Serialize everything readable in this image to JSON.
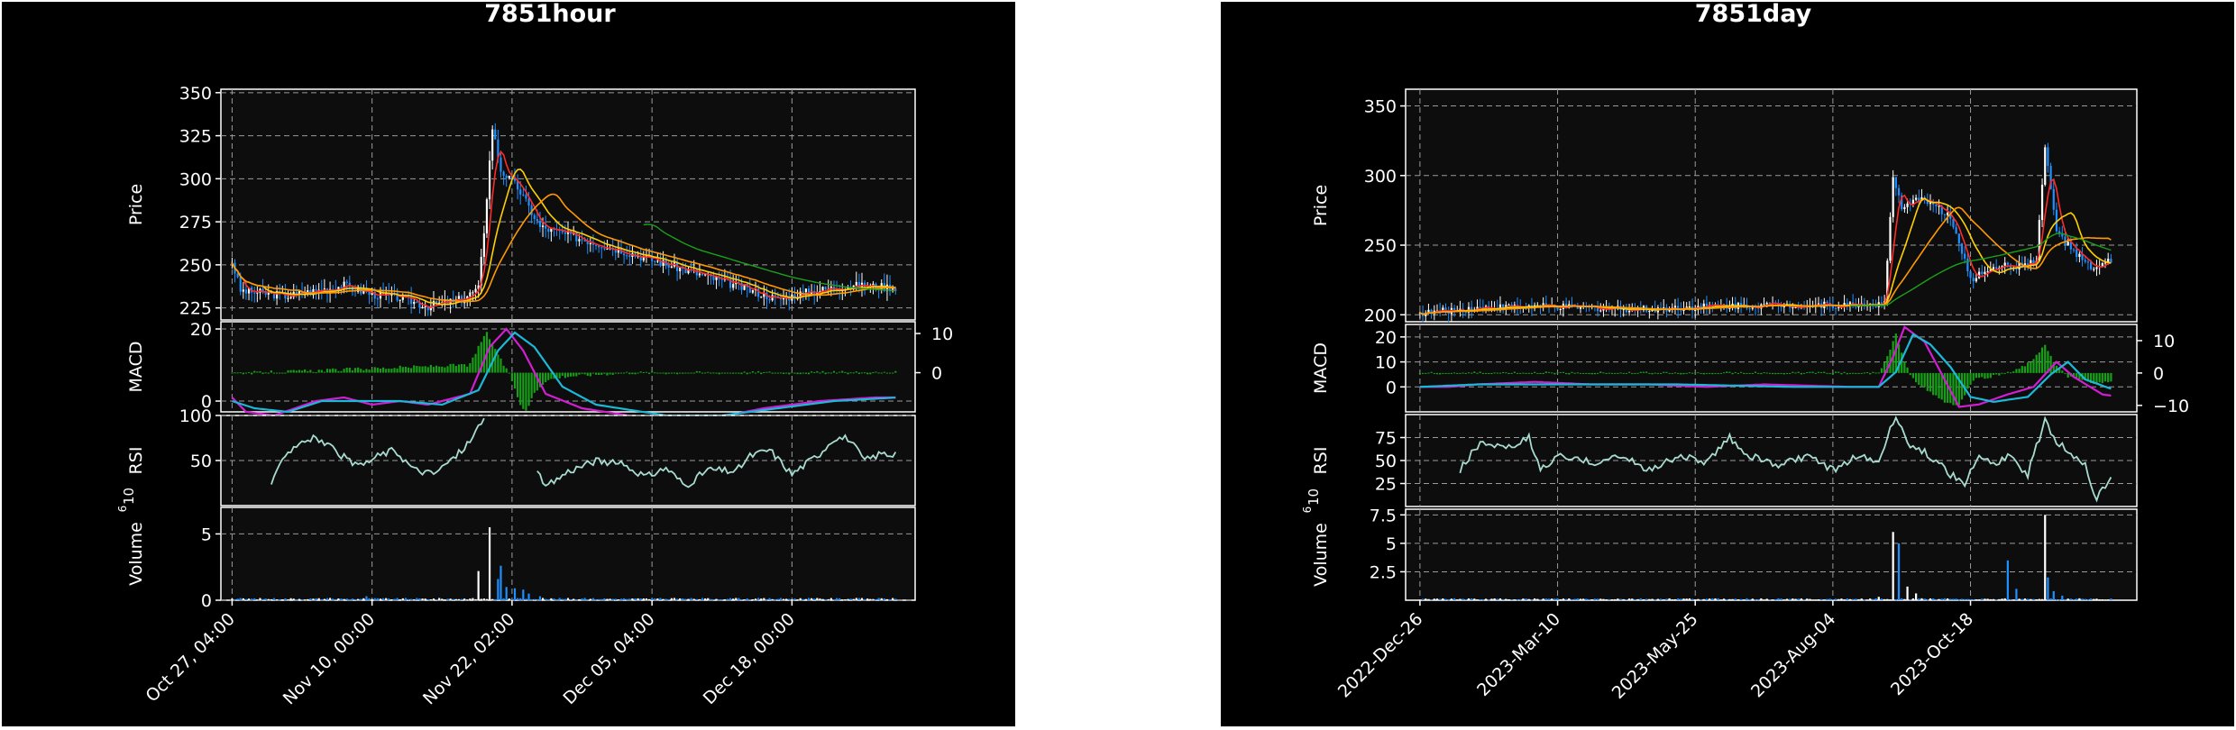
{
  "chart_data": [
    {
      "type": "candlestick",
      "title": "7851hour",
      "panels": [
        {
          "name": "price",
          "ylabel": "Price",
          "ylim": [
            218,
            352
          ],
          "yticks": [
            225,
            250,
            275,
            300,
            325,
            350
          ]
        },
        {
          "name": "macd",
          "ylabel": "MACD",
          "ylim": [
            -3,
            22
          ],
          "yticks": [
            0,
            20
          ],
          "ylim_right": [
            -10,
            13
          ],
          "yticks_right": [
            0,
            10
          ]
        },
        {
          "name": "rsi",
          "ylabel": "RSI",
          "ylim": [
            0,
            100
          ],
          "yticks": [
            50,
            100
          ]
        },
        {
          "name": "volume",
          "ylabel": "Volume",
          "ylabel_exp": "6",
          "ylim": [
            0,
            7
          ],
          "yticks": [
            0,
            5
          ]
        }
      ],
      "xlim": [
        -4,
        244
      ],
      "xticks": [
        {
          "i": 0,
          "label": "Oct 27, 04:00"
        },
        {
          "i": 50,
          "label": "Nov 10, 00:00"
        },
        {
          "i": 100,
          "label": "Nov 22, 02:00"
        },
        {
          "i": 150,
          "label": "Dec 05, 04:00"
        },
        {
          "i": 200,
          "label": "Dec 18, 00:00"
        }
      ],
      "price_anchors": [
        [
          0,
          252
        ],
        [
          3,
          235
        ],
        [
          20,
          232
        ],
        [
          40,
          238
        ],
        [
          50,
          233
        ],
        [
          60,
          231
        ],
        [
          70,
          226
        ],
        [
          82,
          230
        ],
        [
          88,
          236
        ],
        [
          90,
          270
        ],
        [
          93,
          330
        ],
        [
          96,
          305
        ],
        [
          102,
          295
        ],
        [
          110,
          272
        ],
        [
          125,
          265
        ],
        [
          140,
          258
        ],
        [
          160,
          248
        ],
        [
          180,
          238
        ],
        [
          195,
          230
        ],
        [
          205,
          234
        ],
        [
          220,
          238
        ],
        [
          238,
          237
        ]
      ],
      "volume_spikes": [
        [
          88,
          2.2
        ],
        [
          92,
          5.5
        ],
        [
          95,
          1.6
        ],
        [
          96,
          2.6
        ],
        [
          98,
          1.0
        ],
        [
          101,
          0.9
        ],
        [
          104,
          0.8
        ],
        [
          106,
          0.5
        ],
        [
          110,
          0.3
        ],
        [
          48,
          0.3
        ]
      ],
      "rsi_anchors": [
        [
          14,
          20
        ],
        [
          18,
          55
        ],
        [
          25,
          72
        ],
        [
          30,
          75
        ],
        [
          38,
          58
        ],
        [
          45,
          42
        ],
        [
          52,
          55
        ],
        [
          58,
          62
        ],
        [
          65,
          40
        ],
        [
          72,
          35
        ],
        [
          80,
          55
        ],
        [
          86,
          75
        ],
        [
          90,
          100
        ],
        [
          103,
          null
        ],
        [
          108,
          42
        ],
        [
          112,
          20
        ],
        [
          120,
          38
        ],
        [
          130,
          50
        ],
        [
          140,
          45
        ],
        [
          148,
          32
        ],
        [
          155,
          42
        ],
        [
          162,
          22
        ],
        [
          170,
          40
        ],
        [
          180,
          38
        ],
        [
          185,
          55
        ],
        [
          192,
          62
        ],
        [
          200,
          35
        ],
        [
          210,
          58
        ],
        [
          215,
          75
        ],
        [
          220,
          75
        ],
        [
          226,
          50
        ],
        [
          232,
          58
        ],
        [
          238,
          55
        ]
      ],
      "macd_anchors": [
        [
          0,
          1
        ],
        [
          5,
          -3
        ],
        [
          15,
          -4
        ],
        [
          30,
          0
        ],
        [
          40,
          1
        ],
        [
          50,
          -1
        ],
        [
          60,
          0
        ],
        [
          70,
          -1
        ],
        [
          85,
          2
        ],
        [
          92,
          15
        ],
        [
          98,
          20
        ],
        [
          104,
          14
        ],
        [
          112,
          2
        ],
        [
          125,
          -2
        ],
        [
          150,
          -5
        ],
        [
          170,
          -5
        ],
        [
          190,
          -2
        ],
        [
          210,
          0
        ],
        [
          230,
          1
        ],
        [
          238,
          1
        ]
      ],
      "signal_anchors": [
        [
          0,
          0
        ],
        [
          8,
          -2
        ],
        [
          20,
          -3
        ],
        [
          32,
          0
        ],
        [
          45,
          0
        ],
        [
          60,
          0
        ],
        [
          75,
          -1
        ],
        [
          88,
          3
        ],
        [
          95,
          14
        ],
        [
          101,
          19
        ],
        [
          108,
          15
        ],
        [
          118,
          4
        ],
        [
          130,
          -1
        ],
        [
          155,
          -4
        ],
        [
          175,
          -4
        ],
        [
          195,
          -2
        ],
        [
          215,
          0
        ],
        [
          238,
          1
        ]
      ],
      "hist_anchors": [
        [
          0,
          0
        ],
        [
          10,
          0
        ],
        [
          85,
          2
        ],
        [
          89,
          8
        ],
        [
          91,
          10
        ],
        [
          94,
          6
        ],
        [
          97,
          2
        ],
        [
          100,
          -2
        ],
        [
          103,
          -8
        ],
        [
          105,
          -10
        ],
        [
          108,
          -5
        ],
        [
          112,
          -2
        ],
        [
          118,
          -1
        ],
        [
          140,
          0
        ],
        [
          238,
          0
        ]
      ]
    },
    {
      "type": "candlestick",
      "title": "7851day",
      "panels": [
        {
          "name": "price",
          "ylabel": "Price",
          "ylim": [
            195,
            362
          ],
          "yticks": [
            200,
            250,
            300,
            350
          ]
        },
        {
          "name": "macd",
          "ylabel": "MACD",
          "ylim": [
            -10,
            25
          ],
          "yticks": [
            0,
            10,
            20
          ],
          "ylim_right": [
            -12,
            15
          ],
          "yticks_right": [
            -10,
            0,
            10
          ]
        },
        {
          "name": "rsi",
          "ylabel": "RSI",
          "ylim": [
            0,
            100
          ],
          "yticks": [
            25,
            50,
            75
          ]
        },
        {
          "name": "volume",
          "ylabel": "Volume",
          "ylabel_exp": "6",
          "ylim": [
            0,
            8
          ],
          "yticks": [
            2.5,
            5.0,
            7.5
          ]
        }
      ],
      "xlim": [
        -5,
        250
      ],
      "xticks": [
        {
          "i": 0,
          "label": "2022-Dec-26"
        },
        {
          "i": 48,
          "label": "2023-Mar-10"
        },
        {
          "i": 96,
          "label": "2023-May-25"
        },
        {
          "i": 144,
          "label": "2023-Aug-04"
        },
        {
          "i": 192,
          "label": "2023-Oct-18"
        }
      ],
      "price_anchors": [
        [
          0,
          201
        ],
        [
          20,
          205
        ],
        [
          40,
          206
        ],
        [
          60,
          205
        ],
        [
          80,
          204
        ],
        [
          100,
          206
        ],
        [
          120,
          207
        ],
        [
          150,
          207
        ],
        [
          162,
          208
        ],
        [
          165,
          300
        ],
        [
          168,
          275
        ],
        [
          175,
          285
        ],
        [
          185,
          270
        ],
        [
          192,
          225
        ],
        [
          200,
          235
        ],
        [
          210,
          235
        ],
        [
          215,
          240
        ],
        [
          218,
          320
        ],
        [
          222,
          260
        ],
        [
          228,
          245
        ],
        [
          235,
          232
        ],
        [
          240,
          238
        ],
        [
          242,
          238
        ]
      ],
      "volume_spikes": [
        [
          165,
          6.0
        ],
        [
          167,
          5.0
        ],
        [
          170,
          1.2
        ],
        [
          173,
          0.6
        ],
        [
          205,
          3.5
        ],
        [
          208,
          1.0
        ],
        [
          218,
          7.5
        ],
        [
          219,
          2.0
        ],
        [
          221,
          0.8
        ],
        [
          224,
          0.4
        ],
        [
          160,
          0.3
        ]
      ],
      "rsi_anchors": [
        [
          14,
          40
        ],
        [
          18,
          58
        ],
        [
          22,
          70
        ],
        [
          30,
          62
        ],
        [
          38,
          75
        ],
        [
          42,
          40
        ],
        [
          48,
          55
        ],
        [
          60,
          48
        ],
        [
          70,
          55
        ],
        [
          80,
          40
        ],
        [
          90,
          55
        ],
        [
          100,
          48
        ],
        [
          108,
          75
        ],
        [
          115,
          55
        ],
        [
          125,
          45
        ],
        [
          135,
          55
        ],
        [
          145,
          38
        ],
        [
          152,
          55
        ],
        [
          160,
          48
        ],
        [
          166,
          100
        ],
        [
          170,
          70
        ],
        [
          178,
          55
        ],
        [
          185,
          35
        ],
        [
          190,
          25
        ],
        [
          195,
          55
        ],
        [
          200,
          45
        ],
        [
          205,
          55
        ],
        [
          212,
          35
        ],
        [
          218,
          95
        ],
        [
          222,
          70
        ],
        [
          228,
          55
        ],
        [
          232,
          45
        ],
        [
          236,
          8
        ],
        [
          240,
          28
        ],
        [
          244,
          40
        ]
      ],
      "macd_anchors": [
        [
          0,
          0
        ],
        [
          10,
          0
        ],
        [
          20,
          1
        ],
        [
          40,
          2
        ],
        [
          60,
          1
        ],
        [
          80,
          1
        ],
        [
          100,
          0
        ],
        [
          120,
          1
        ],
        [
          150,
          0
        ],
        [
          160,
          0
        ],
        [
          165,
          12
        ],
        [
          169,
          24
        ],
        [
          176,
          18
        ],
        [
          182,
          5
        ],
        [
          188,
          -8
        ],
        [
          195,
          -7
        ],
        [
          205,
          -3
        ],
        [
          214,
          0
        ],
        [
          222,
          10
        ],
        [
          228,
          4
        ],
        [
          238,
          -3
        ],
        [
          244,
          -4
        ]
      ],
      "signal_anchors": [
        [
          0,
          0
        ],
        [
          20,
          1
        ],
        [
          50,
          1
        ],
        [
          90,
          1
        ],
        [
          130,
          0
        ],
        [
          160,
          0
        ],
        [
          166,
          6
        ],
        [
          172,
          21
        ],
        [
          178,
          17
        ],
        [
          185,
          8
        ],
        [
          192,
          -4
        ],
        [
          200,
          -6
        ],
        [
          212,
          -4
        ],
        [
          220,
          5
        ],
        [
          226,
          10
        ],
        [
          232,
          3
        ],
        [
          244,
          -2
        ]
      ],
      "hist_anchors": [
        [
          0,
          0
        ],
        [
          160,
          0
        ],
        [
          163,
          5
        ],
        [
          166,
          12
        ],
        [
          169,
          3
        ],
        [
          172,
          -2
        ],
        [
          178,
          -6
        ],
        [
          183,
          -9
        ],
        [
          188,
          -10
        ],
        [
          193,
          -2
        ],
        [
          200,
          -1
        ],
        [
          208,
          1
        ],
        [
          214,
          4
        ],
        [
          218,
          9
        ],
        [
          221,
          3
        ],
        [
          226,
          -1
        ],
        [
          234,
          -3
        ],
        [
          244,
          -3
        ]
      ]
    }
  ]
}
